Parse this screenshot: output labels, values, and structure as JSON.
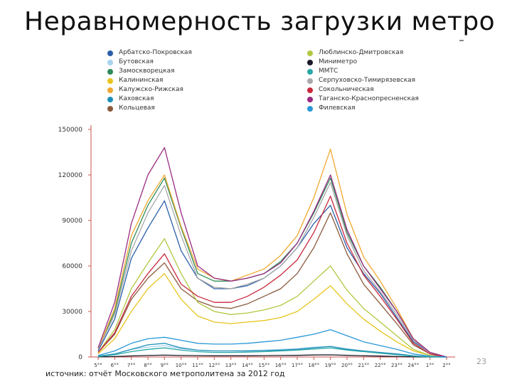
{
  "slide": {
    "title": "Неравномерность загрузки метро",
    "source": "источник: отчёт Московского метрополитена за 2012 год",
    "page_number": "23"
  },
  "colors": {
    "axis": "#c8504a",
    "tick_text": "#333333"
  },
  "chart_data": {
    "type": "line",
    "x": [
      "5°°",
      "6°°",
      "7°°",
      "8°°",
      "9°°",
      "10°°",
      "11°°",
      "12°°",
      "13°°",
      "14°°",
      "15°°",
      "16°°",
      "17°°",
      "18°°",
      "19°°",
      "20°°",
      "21°°",
      "22°°",
      "23°°",
      "24°°",
      "1°°",
      "2°°"
    ],
    "ylim": [
      0,
      150000
    ],
    "yticks": [
      0,
      30000,
      60000,
      90000,
      120000,
      150000
    ],
    "ytick_labels": [
      "0",
      "30000",
      "60000",
      "90000",
      "120000",
      "150000"
    ],
    "grid": false,
    "legend_position": "top",
    "series": [
      {
        "name": "Арбатско-Покровская",
        "color": "#2a5ea8",
        "values": [
          4000,
          25000,
          65000,
          85000,
          103000,
          70000,
          52000,
          45000,
          45000,
          47000,
          52000,
          60000,
          72000,
          88000,
          100000,
          72000,
          55000,
          42000,
          26000,
          10000,
          3000,
          0
        ]
      },
      {
        "name": "Бутовская",
        "color": "#a8d2ee",
        "values": [
          500,
          2000,
          5000,
          6500,
          7500,
          5500,
          4500,
          4000,
          4000,
          4200,
          4500,
          5000,
          5500,
          6500,
          7000,
          5500,
          4000,
          3000,
          2000,
          800,
          200,
          0
        ]
      },
      {
        "name": "Замоскворецкая",
        "color": "#2e8b57",
        "values": [
          5000,
          30000,
          75000,
          100000,
          118000,
          85000,
          55000,
          50000,
          50000,
          52000,
          55000,
          63000,
          75000,
          95000,
          118000,
          82000,
          60000,
          46000,
          30000,
          12000,
          3000,
          0
        ]
      },
      {
        "name": "Калининская",
        "color": "#e8c41e",
        "values": [
          2000,
          12000,
          30000,
          45000,
          55000,
          38000,
          27000,
          23000,
          22000,
          23000,
          24000,
          26000,
          30000,
          38000,
          47000,
          35000,
          25000,
          17000,
          10000,
          4000,
          1000,
          0
        ]
      },
      {
        "name": "Калужско-Рижская",
        "color": "#f0a830",
        "values": [
          5000,
          32000,
          80000,
          103000,
          120000,
          86000,
          58000,
          52000,
          50000,
          54000,
          58000,
          67000,
          80000,
          105000,
          137000,
          94000,
          66000,
          50000,
          32000,
          12000,
          3000,
          0
        ]
      },
      {
        "name": "Каховская",
        "color": "#1e90b8",
        "values": [
          500,
          2000,
          5000,
          8000,
          9000,
          6000,
          4500,
          4000,
          4000,
          4000,
          4200,
          4500,
          5000,
          6000,
          7000,
          5000,
          4000,
          3000,
          2000,
          800,
          200,
          0
        ]
      },
      {
        "name": "Кольцевая",
        "color": "#8b5a3c",
        "values": [
          3000,
          15000,
          38000,
          52000,
          62000,
          45000,
          37000,
          33000,
          32000,
          35000,
          40000,
          45000,
          55000,
          72000,
          95000,
          68000,
          48000,
          35000,
          22000,
          8000,
          2000,
          0
        ]
      },
      {
        "name": "Люблинско-Дмитровская",
        "color": "#b0c840",
        "values": [
          3000,
          18000,
          45000,
          62000,
          78000,
          55000,
          36000,
          30000,
          28000,
          29000,
          31000,
          34000,
          40000,
          50000,
          60000,
          44000,
          32000,
          23000,
          14000,
          5000,
          1000,
          0
        ]
      },
      {
        "name": "Миниметро",
        "color": "#1a1a2a",
        "values": [
          100,
          300,
          700,
          1000,
          1200,
          1000,
          900,
          800,
          800,
          800,
          900,
          1000,
          1100,
          1300,
          1400,
          1100,
          800,
          600,
          300,
          100,
          0,
          0
        ]
      },
      {
        "name": "ММТС",
        "color": "#2aa8a8",
        "values": [
          300,
          1500,
          3500,
          5000,
          6000,
          4500,
          3500,
          3000,
          3000,
          3200,
          3500,
          4000,
          4500,
          5200,
          6000,
          4500,
          3500,
          2500,
          1500,
          500,
          100,
          0
        ]
      },
      {
        "name": "Серпуховско-Тимирязевская",
        "color": "#a8a8a8",
        "values": [
          5000,
          28000,
          70000,
          95000,
          113000,
          80000,
          52000,
          46000,
          45000,
          48000,
          52000,
          60000,
          72000,
          92000,
          115000,
          80000,
          57000,
          43000,
          28000,
          11000,
          3000,
          0
        ]
      },
      {
        "name": "Сокольническая",
        "color": "#c8283c",
        "values": [
          3000,
          16000,
          40000,
          55000,
          68000,
          48000,
          40000,
          36000,
          36000,
          40000,
          46000,
          54000,
          64000,
          82000,
          106000,
          75000,
          54000,
          40000,
          25000,
          9000,
          2000,
          0
        ]
      },
      {
        "name": "Таганско-Краснопресненская",
        "color": "#9a2a82",
        "values": [
          6000,
          36000,
          88000,
          120000,
          138000,
          95000,
          60000,
          52000,
          50000,
          52000,
          55000,
          62000,
          75000,
          96000,
          120000,
          84000,
          60000,
          45000,
          30000,
          12000,
          3000,
          0
        ]
      },
      {
        "name": "Филевская",
        "color": "#2a98d8",
        "values": [
          1000,
          4000,
          9000,
          12000,
          13000,
          11000,
          9000,
          8500,
          8500,
          9000,
          10000,
          11000,
          13000,
          15000,
          18000,
          14000,
          10000,
          7500,
          5000,
          2000,
          500,
          0
        ]
      }
    ]
  }
}
